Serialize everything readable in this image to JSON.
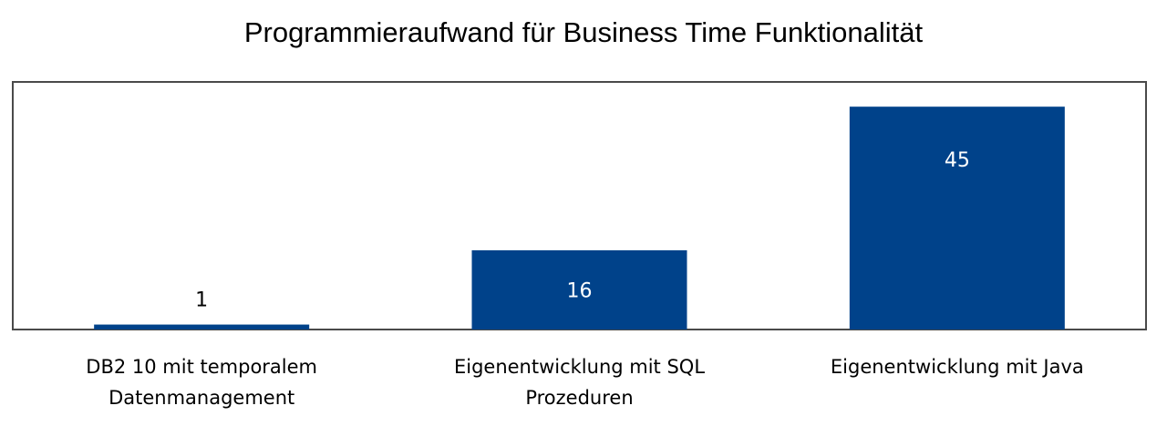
{
  "chart_data": {
    "type": "bar",
    "title": "Programmieraufwand für Business Time Funktionalität",
    "categories": [
      [
        "DB2 10 mit temporalem",
        "Datenmanagement"
      ],
      [
        "Eigenentwicklung mit SQL",
        "Prozeduren"
      ],
      [
        "Eigenentwicklung mit Java"
      ]
    ],
    "values": [
      1,
      16,
      45
    ],
    "data_labels": [
      "1",
      "16",
      "45"
    ],
    "ylim": [
      0,
      50
    ],
    "grid": false,
    "legend": "none",
    "bar_color": "#00428a",
    "label_color_inside": "#ffffff",
    "label_color_outside": "#000000"
  }
}
